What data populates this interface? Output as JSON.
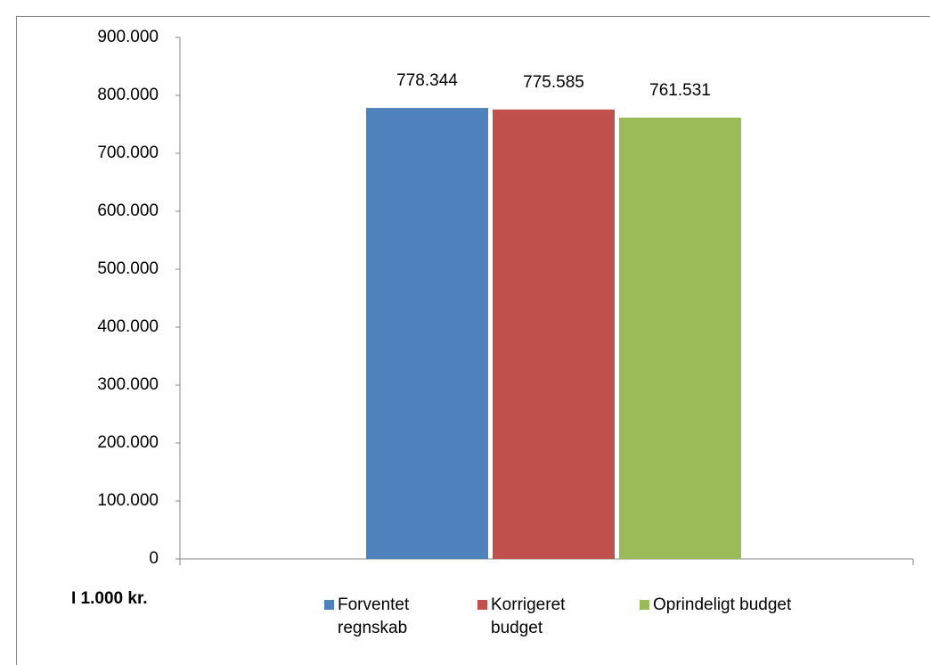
{
  "chart_data": {
    "type": "bar",
    "y_label": "I 1.000 kr.",
    "categories": [
      null
    ],
    "series": [
      {
        "name": "Forventet regnskab",
        "color": "#4f81bd",
        "values": [
          778344
        ],
        "value_labels": [
          "778.344"
        ]
      },
      {
        "name": "Korrigeret budget",
        "color": "#c0504d",
        "values": [
          775585
        ],
        "value_labels": [
          "775.585"
        ]
      },
      {
        "name": "Oprindeligt budget",
        "color": "#9bbb59",
        "values": [
          761531
        ],
        "value_labels": [
          "761.531"
        ]
      }
    ],
    "ylim": [
      0,
      900000
    ],
    "yticks": [
      0,
      {
        "value": 100000,
        "label": "100.000"
      },
      {
        "value": 200000,
        "label": "200.000"
      },
      {
        "value": 300000,
        "label": "300.000"
      },
      {
        "value": 400000,
        "label": "400.000"
      },
      {
        "value": 500000,
        "label": "500.000"
      },
      {
        "value": 600000,
        "label": "600.000"
      },
      {
        "value": 700000,
        "label": "700.000"
      },
      {
        "value": 800000,
        "label": "800.000"
      },
      {
        "value": 900000,
        "label": "900.000"
      }
    ],
    "legend": "bottom"
  }
}
